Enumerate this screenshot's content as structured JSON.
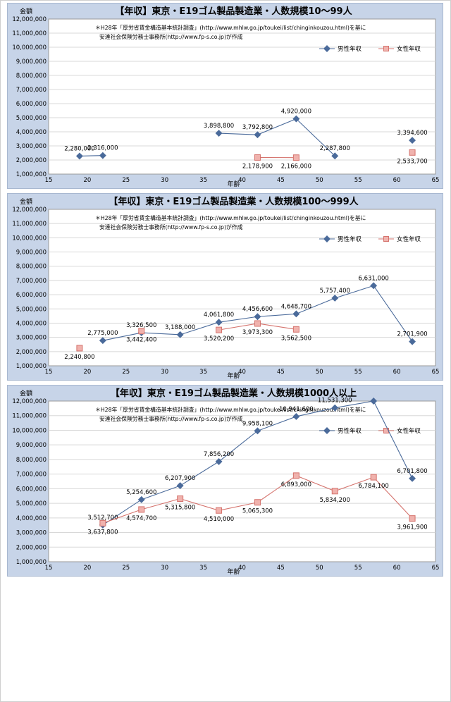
{
  "legend_common": {
    "male": "男性年収",
    "female": "女性年収"
  },
  "note": {
    "line1": "＊H28年「厚労省賃金構造基本統計調査」(http://www.mhlw.go.jp/toukei/list/chinginkouzou.html)を基に",
    "line2": "安達社会保険労務士事務所(http://www.fp-s.co.jp)が作成"
  },
  "colors": {
    "male": "#4a6a9a",
    "female": "#d5736d",
    "panel": "#c7d4e8",
    "plot": "#ffffff"
  },
  "chart_data": [
    {
      "type": "line",
      "title": "【年収】東京・E19ゴム製品製造業・人数規模10～99人",
      "xlabel": "年齢",
      "ylabel": "金額",
      "xlim": [
        15,
        65
      ],
      "ylim": [
        1000000,
        12000000
      ],
      "xticks": [
        "15",
        "20",
        "25",
        "30",
        "35",
        "40",
        "45",
        "50",
        "55",
        "60",
        "65"
      ],
      "yticks": [
        "1,000,000",
        "2,000,000",
        "3,000,000",
        "4,000,000",
        "5,000,000",
        "6,000,000",
        "7,000,000",
        "8,000,000",
        "9,000,000",
        "10,000,000",
        "11,000,000",
        "12,000,000"
      ],
      "legend_position": "top-right",
      "series": [
        {
          "name": "男性年収",
          "segments": [
            [
              {
                "x": 19,
                "y": 2280000,
                "label": "2,280,000"
              },
              {
                "x": 22,
                "y": 2316000,
                "label": "2,316,000"
              }
            ],
            [
              {
                "x": 37,
                "y": 3898800,
                "label": "3,898,800"
              },
              {
                "x": 42,
                "y": 3792800,
                "label": "3,792,800"
              },
              {
                "x": 47,
                "y": 4920000,
                "label": "4,920,000"
              },
              {
                "x": 52,
                "y": 2287800,
                "label": "2,287,800"
              }
            ],
            [
              {
                "x": 62,
                "y": 3394600,
                "label": "3,394,600"
              }
            ]
          ]
        },
        {
          "name": "女性年収",
          "segments": [
            [
              {
                "x": 42,
                "y": 2178900,
                "label": "2,178,900"
              },
              {
                "x": 47,
                "y": 2166000,
                "label": "2,166,000"
              }
            ],
            [
              {
                "x": 62,
                "y": 2533700,
                "label": "2,533,700"
              }
            ]
          ]
        }
      ]
    },
    {
      "type": "line",
      "title": "【年収】東京・E19ゴム製品製造業・人数規模100～999人",
      "xlabel": "年齢",
      "ylabel": "金額",
      "xlim": [
        15,
        65
      ],
      "ylim": [
        1000000,
        12000000
      ],
      "xticks": [
        "15",
        "20",
        "25",
        "30",
        "35",
        "40",
        "45",
        "50",
        "55",
        "60",
        "65"
      ],
      "yticks": [
        "1,000,000",
        "2,000,000",
        "3,000,000",
        "4,000,000",
        "5,000,000",
        "6,000,000",
        "7,000,000",
        "8,000,000",
        "9,000,000",
        "10,000,000",
        "11,000,000",
        "12,000,000"
      ],
      "legend_position": "top-right",
      "series": [
        {
          "name": "男性年収",
          "segments": [
            [
              {
                "x": 22,
                "y": 2775000,
                "label": "2,775,000"
              },
              {
                "x": 27,
                "y": 3326500,
                "label": "3,326,500"
              },
              {
                "x": 32,
                "y": 3188000,
                "label": "3,188,000"
              },
              {
                "x": 37,
                "y": 4061800,
                "label": "4,061,800"
              },
              {
                "x": 42,
                "y": 4456600,
                "label": "4,456,600"
              },
              {
                "x": 47,
                "y": 4648700,
                "label": "4,648,700"
              },
              {
                "x": 52,
                "y": 5757400,
                "label": "5,757,400"
              },
              {
                "x": 57,
                "y": 6631000,
                "label": "6,631,000"
              },
              {
                "x": 62,
                "y": 2701900,
                "label": "2,701,900"
              }
            ]
          ]
        },
        {
          "name": "女性年収",
          "segments": [
            [
              {
                "x": 19,
                "y": 2240800,
                "label": "2,240,800"
              }
            ],
            [
              {
                "x": 27,
                "y": 3442400,
                "label": "3,442,400"
              }
            ],
            [
              {
                "x": 37,
                "y": 3520200,
                "label": "3,520,200"
              },
              {
                "x": 42,
                "y": 3973300,
                "label": "3,973,300"
              },
              {
                "x": 47,
                "y": 3562500,
                "label": "3,562,500"
              }
            ]
          ]
        }
      ]
    },
    {
      "type": "line",
      "title": "【年収】東京・E19ゴム製品製造業・人数規模1000人以上",
      "xlabel": "年齢",
      "ylabel": "金額",
      "xlim": [
        15,
        65
      ],
      "ylim": [
        1000000,
        12000000
      ],
      "xticks": [
        "15",
        "20",
        "25",
        "30",
        "35",
        "40",
        "45",
        "50",
        "55",
        "60",
        "65"
      ],
      "yticks": [
        "1,000,000",
        "2,000,000",
        "3,000,000",
        "4,000,000",
        "5,000,000",
        "6,000,000",
        "7,000,000",
        "8,000,000",
        "9,000,000",
        "10,000,000",
        "11,000,000",
        "12,000,000"
      ],
      "legend_position": "top-right",
      "series": [
        {
          "name": "男性年収",
          "segments": [
            [
              {
                "x": 22,
                "y": 3512700,
                "label": "3,512,700"
              },
              {
                "x": 27,
                "y": 5254600,
                "label": "5,254,600"
              },
              {
                "x": 32,
                "y": 6207900,
                "label": "6,207,900"
              },
              {
                "x": 37,
                "y": 7856200,
                "label": "7,856,200"
              },
              {
                "x": 42,
                "y": 9958100,
                "label": "9,958,100"
              },
              {
                "x": 47,
                "y": 10941600,
                "label": "10,941,600"
              },
              {
                "x": 52,
                "y": 11531300,
                "label": "11,531,300"
              },
              {
                "x": 57,
                "y": 12000000,
                "label": ""
              },
              {
                "x": 62,
                "y": 6701800,
                "label": "6,701,800"
              }
            ]
          ]
        },
        {
          "name": "女性年収",
          "segments": [
            [
              {
                "x": 22,
                "y": 3637800,
                "label": "3,637,800"
              },
              {
                "x": 27,
                "y": 4574700,
                "label": "4,574,700"
              },
              {
                "x": 32,
                "y": 5315800,
                "label": "5,315,800"
              },
              {
                "x": 37,
                "y": 4510000,
                "label": "4,510,000"
              },
              {
                "x": 42,
                "y": 5065300,
                "label": "5,065,300"
              },
              {
                "x": 47,
                "y": 6893000,
                "label": "6,893,000"
              },
              {
                "x": 52,
                "y": 5834200,
                "label": "5,834,200"
              },
              {
                "x": 57,
                "y": 6784100,
                "label": "6,784,100"
              },
              {
                "x": 62,
                "y": 3961900,
                "label": "3,961,900"
              }
            ]
          ]
        }
      ]
    }
  ]
}
